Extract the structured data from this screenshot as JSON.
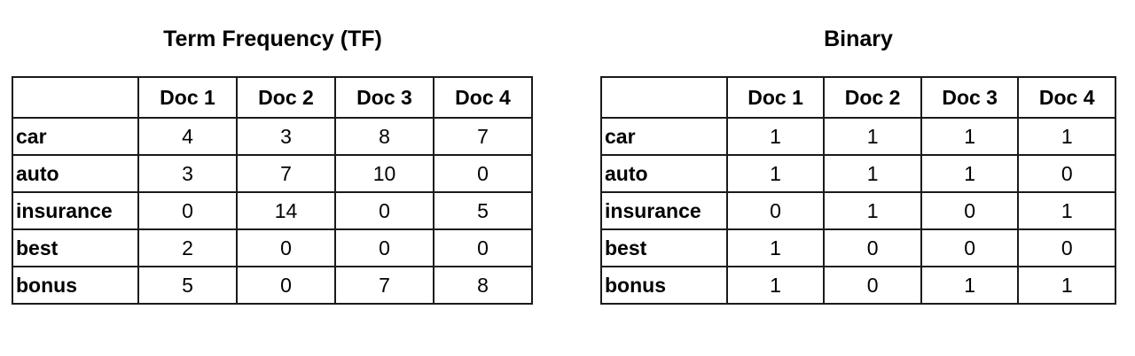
{
  "tables": [
    {
      "title": "Term Frequency (TF)",
      "columns": [
        "",
        "Doc 1",
        "Doc 2",
        "Doc 3",
        "Doc 4"
      ],
      "rows": [
        {
          "term": "car",
          "values": [
            "4",
            "3",
            "8",
            "7"
          ]
        },
        {
          "term": "auto",
          "values": [
            "3",
            "7",
            "10",
            "0"
          ]
        },
        {
          "term": "insurance",
          "values": [
            "0",
            "14",
            "0",
            "5"
          ]
        },
        {
          "term": "best",
          "values": [
            "2",
            "0",
            "0",
            "0"
          ]
        },
        {
          "term": "bonus",
          "values": [
            "5",
            "0",
            "7",
            "8"
          ]
        }
      ]
    },
    {
      "title": "Binary",
      "columns": [
        "",
        "Doc 1",
        "Doc 2",
        "Doc 3",
        "Doc 4"
      ],
      "rows": [
        {
          "term": "car",
          "values": [
            "1",
            "1",
            "1",
            "1"
          ]
        },
        {
          "term": "auto",
          "values": [
            "1",
            "1",
            "1",
            "0"
          ]
        },
        {
          "term": "insurance",
          "values": [
            "0",
            "1",
            "0",
            "1"
          ]
        },
        {
          "term": "best",
          "values": [
            "1",
            "0",
            "0",
            "0"
          ]
        },
        {
          "term": "bonus",
          "values": [
            "1",
            "0",
            "1",
            "1"
          ]
        }
      ]
    }
  ]
}
